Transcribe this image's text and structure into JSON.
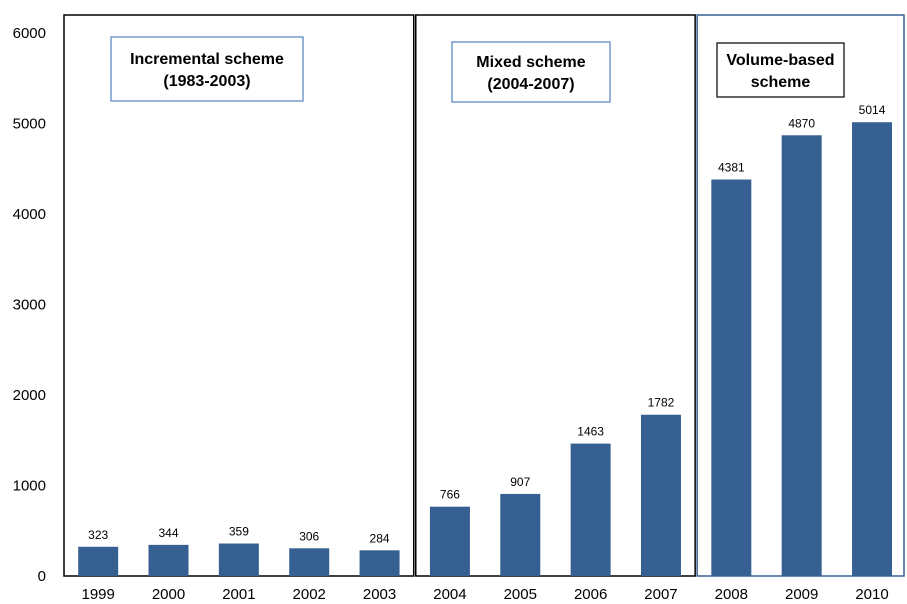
{
  "chart_data": {
    "type": "bar",
    "categories": [
      "1999",
      "2000",
      "2001",
      "2002",
      "2003",
      "2004",
      "2005",
      "2006",
      "2007",
      "2008",
      "2009",
      "2010"
    ],
    "values": [
      323,
      344,
      359,
      306,
      284,
      766,
      907,
      1463,
      1782,
      4381,
      4870,
      5014
    ],
    "data_labels": [
      "323",
      "344",
      "359",
      "306",
      "284",
      "766",
      "907",
      "1463",
      "1782",
      "4381",
      "4870",
      "5014"
    ],
    "ylim": [
      0,
      6000
    ],
    "yticks": [
      0,
      1000,
      2000,
      3000,
      4000,
      5000,
      6000
    ],
    "ytick_labels": [
      "0",
      "1000",
      "2000",
      "3000",
      "4000",
      "5000",
      "6000"
    ],
    "bar_color": "#376092",
    "grid": false,
    "annotations": [
      {
        "lines": [
          "Incremental scheme",
          "(1983-2003)"
        ],
        "border_color": "#4f81bd"
      },
      {
        "lines": [
          "Mixed scheme",
          "(2004-2007)"
        ],
        "border_color": "#4f81bd"
      },
      {
        "lines": [
          "Volume-based",
          "scheme"
        ],
        "border_color": "#000000"
      }
    ],
    "regions": [
      {
        "from": "1999",
        "to": "2003",
        "border_color": "#000000"
      },
      {
        "from": "2004",
        "to": "2007",
        "border_color": "#000000"
      },
      {
        "from": "2008",
        "to": "2010",
        "border_color": "#376092"
      }
    ]
  }
}
